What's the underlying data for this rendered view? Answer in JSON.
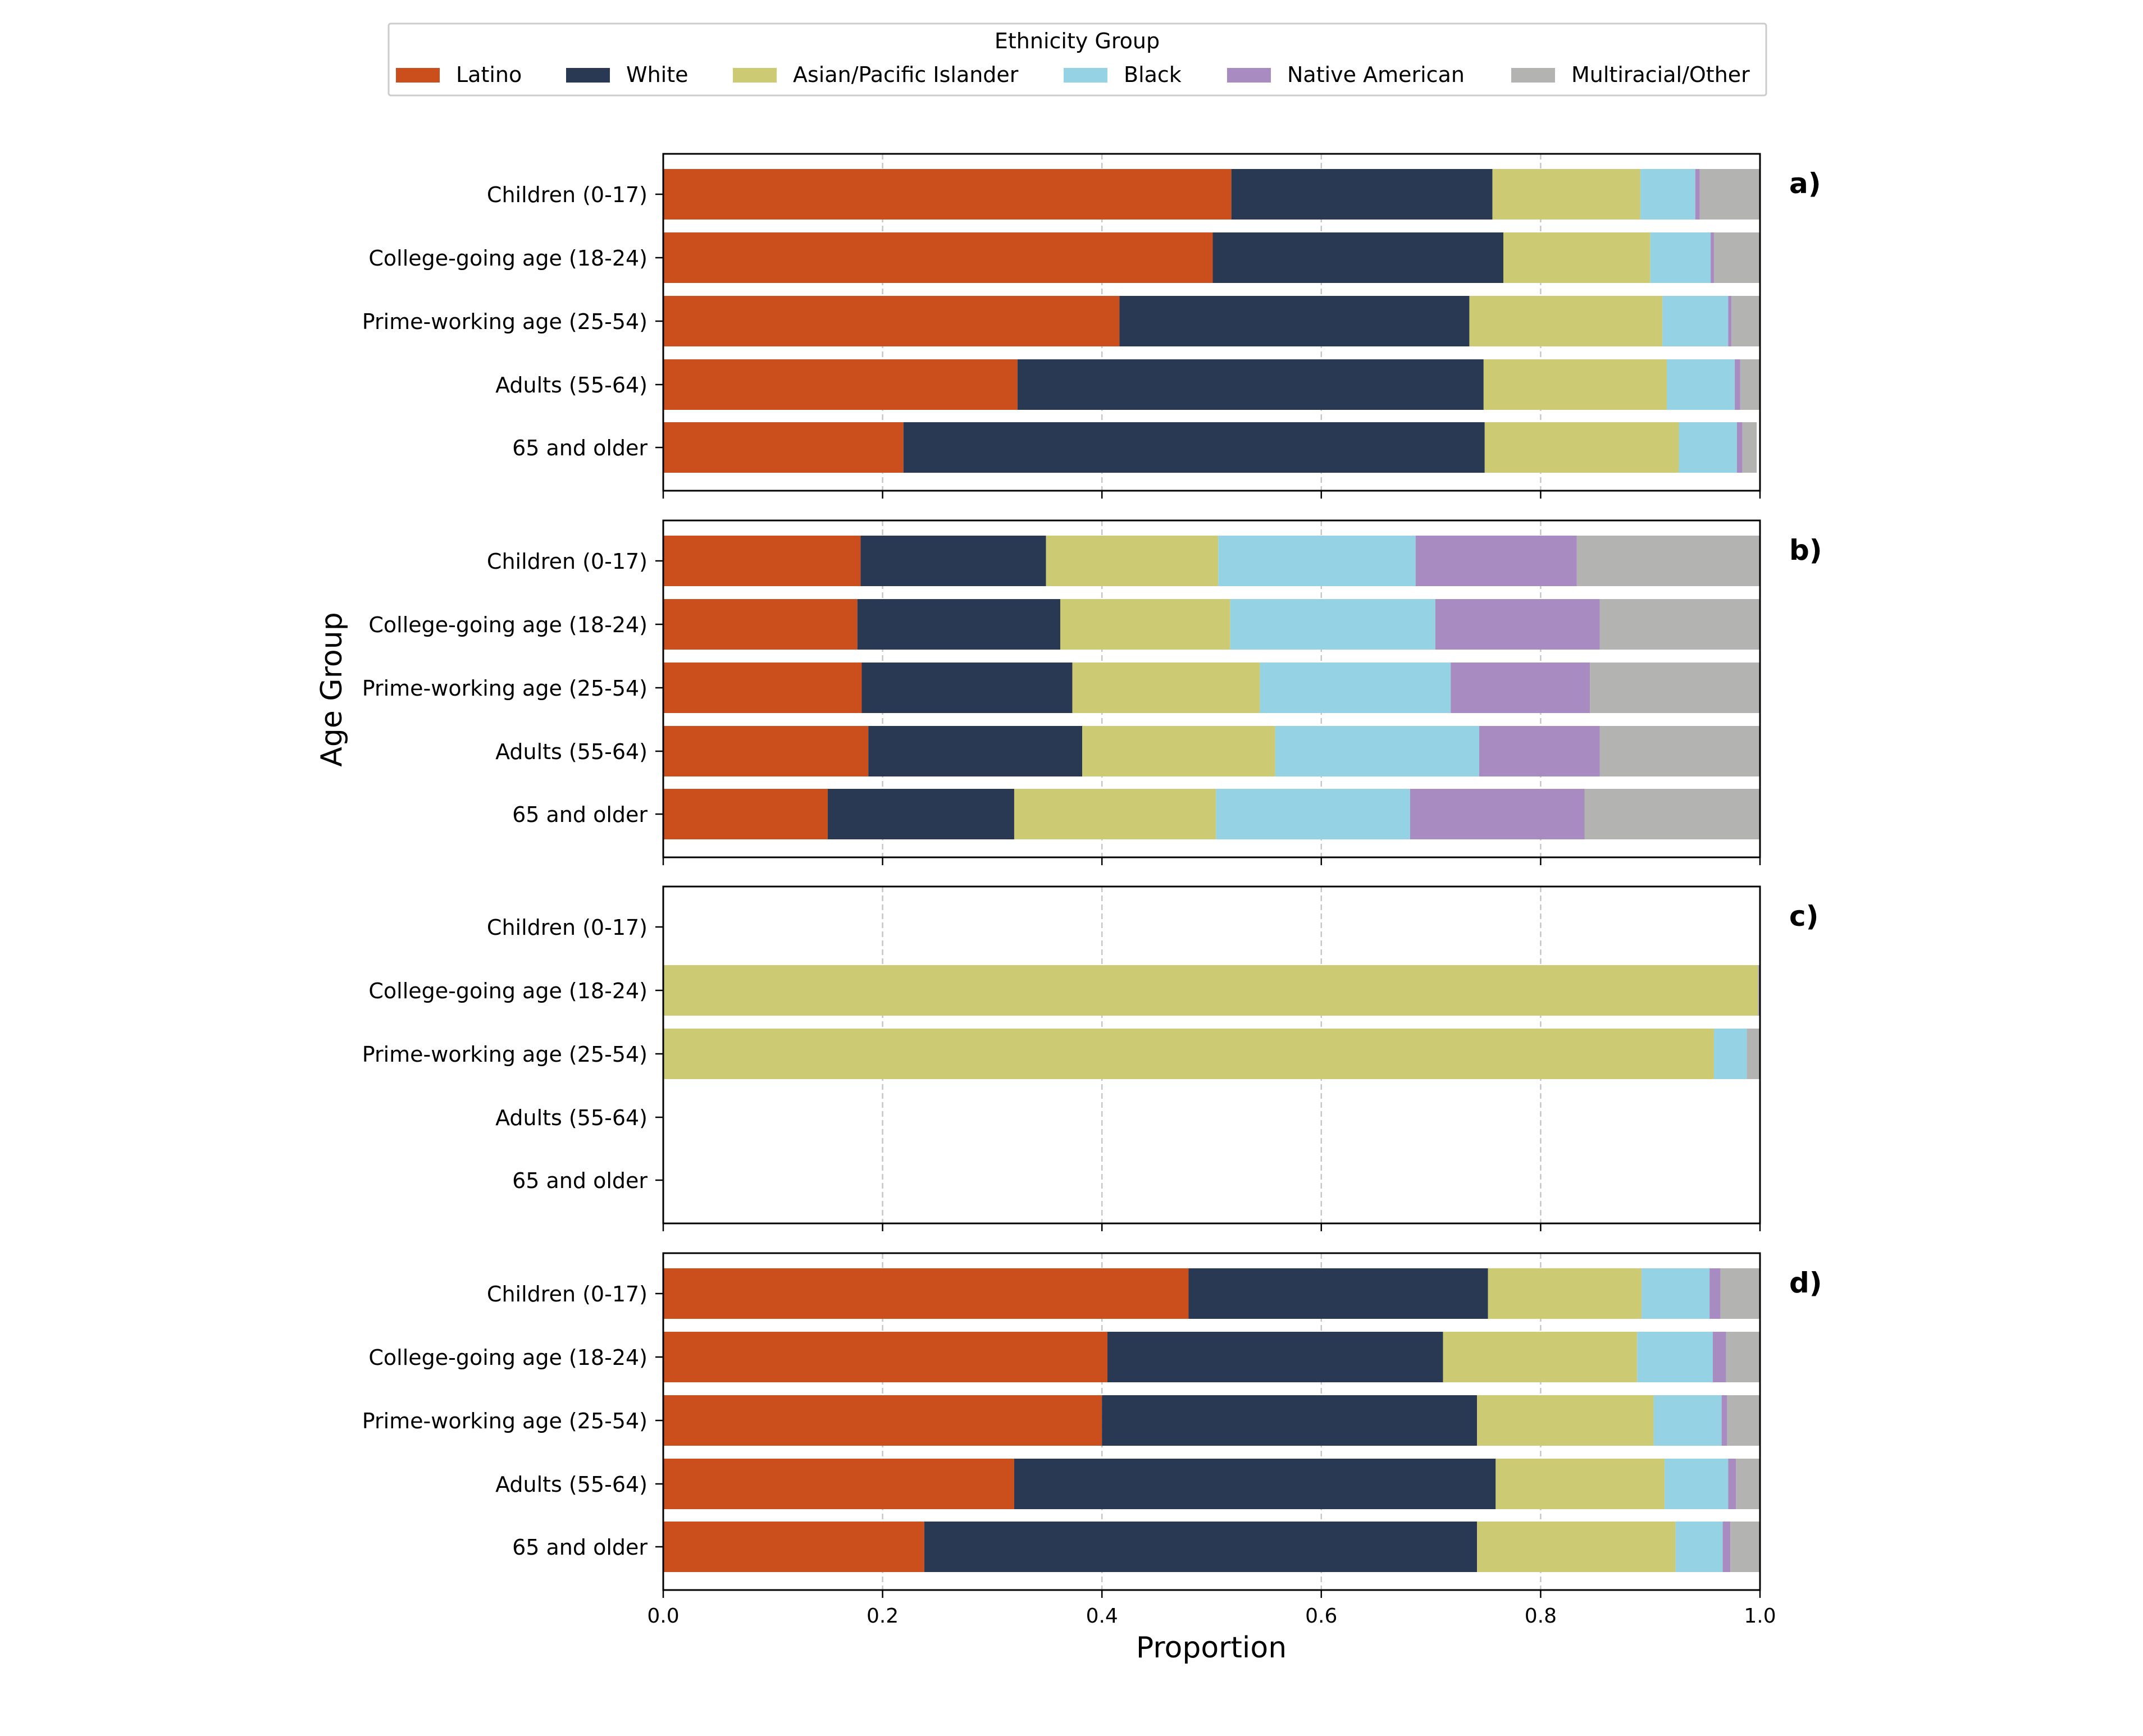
{
  "chart_data": {
    "type": "stacked-horizontal-bar",
    "legend": {
      "title": "Ethnicity Group",
      "placement": "top-center",
      "entries": [
        "Latino",
        "White",
        "Asian/Pacific Islander",
        "Black",
        "Native American",
        "Multiracial/Other"
      ]
    },
    "colors": {
      "Latino": "#cb4f1d",
      "White": "#293954",
      "Asian/Pacific Islander": "#cdca74",
      "Black": "#95d2e3",
      "Native American": "#a88bc0",
      "Multiracial/Other": "#b3b3b2"
    },
    "categories": [
      "Children (0-17)",
      "College-going age (18-24)",
      "Prime-working age (25-54)",
      "Adults (55-64)",
      "65 and older"
    ],
    "xlabel": "Proportion",
    "ylabel": "Age Group",
    "xlim": [
      0,
      1
    ],
    "xticks": [
      "0.0",
      "0.2",
      "0.4",
      "0.6",
      "0.8",
      "1.0"
    ],
    "grid": "x-dashed",
    "panels": [
      {
        "label": "a)",
        "series": [
          {
            "name": "Latino",
            "values": [
              0.518,
              0.501,
              0.416,
              0.323,
              0.219
            ]
          },
          {
            "name": "White",
            "values": [
              0.238,
              0.265,
              0.319,
              0.425,
              0.53
            ]
          },
          {
            "name": "Asian/Pacific Islander",
            "values": [
              0.135,
              0.134,
              0.176,
              0.167,
              0.177
            ]
          },
          {
            "name": "Black",
            "values": [
              0.05,
              0.055,
              0.06,
              0.062,
              0.053
            ]
          },
          {
            "name": "Native American",
            "values": [
              0.004,
              0.003,
              0.003,
              0.005,
              0.005
            ]
          },
          {
            "name": "Multiracial/Other",
            "values": [
              0.055,
              0.042,
              0.026,
              0.018,
              0.013
            ]
          }
        ]
      },
      {
        "label": "b)",
        "series": [
          {
            "name": "Latino",
            "values": [
              0.18,
              0.177,
              0.181,
              0.187,
              0.15
            ]
          },
          {
            "name": "White",
            "values": [
              0.169,
              0.185,
              0.192,
              0.195,
              0.17
            ]
          },
          {
            "name": "Asian/Pacific Islander",
            "values": [
              0.157,
              0.155,
              0.171,
              0.176,
              0.184
            ]
          },
          {
            "name": "Black",
            "values": [
              0.18,
              0.187,
              0.174,
              0.186,
              0.177
            ]
          },
          {
            "name": "Native American",
            "values": [
              0.147,
              0.15,
              0.127,
              0.11,
              0.159
            ]
          },
          {
            "name": "Multiracial/Other",
            "values": [
              0.167,
              0.146,
              0.155,
              0.146,
              0.16
            ]
          }
        ]
      },
      {
        "label": "c)",
        "series": [
          {
            "name": "Latino",
            "values": [
              0,
              0,
              0,
              0,
              0
            ]
          },
          {
            "name": "White",
            "values": [
              0,
              0,
              0,
              0,
              0
            ]
          },
          {
            "name": "Asian/Pacific Islander",
            "values": [
              0,
              0.998,
              0.958,
              0,
              0
            ]
          },
          {
            "name": "Black",
            "values": [
              0,
              0,
              0.03,
              0,
              0
            ]
          },
          {
            "name": "Native American",
            "values": [
              0,
              0,
              0,
              0,
              0
            ]
          },
          {
            "name": "Multiracial/Other",
            "values": [
              0,
              0.002,
              0.012,
              0,
              0
            ]
          }
        ]
      },
      {
        "label": "d)",
        "series": [
          {
            "name": "Latino",
            "values": [
              0.479,
              0.405,
              0.4,
              0.32,
              0.238
            ]
          },
          {
            "name": "White",
            "values": [
              0.273,
              0.306,
              0.342,
              0.439,
              0.504
            ]
          },
          {
            "name": "Asian/Pacific Islander",
            "values": [
              0.14,
              0.177,
              0.161,
              0.154,
              0.181
            ]
          },
          {
            "name": "Black",
            "values": [
              0.062,
              0.069,
              0.062,
              0.058,
              0.043
            ]
          },
          {
            "name": "Native American",
            "values": [
              0.01,
              0.012,
              0.005,
              0.007,
              0.007
            ]
          },
          {
            "name": "Multiracial/Other",
            "values": [
              0.036,
              0.031,
              0.03,
              0.022,
              0.027
            ]
          }
        ]
      }
    ]
  }
}
